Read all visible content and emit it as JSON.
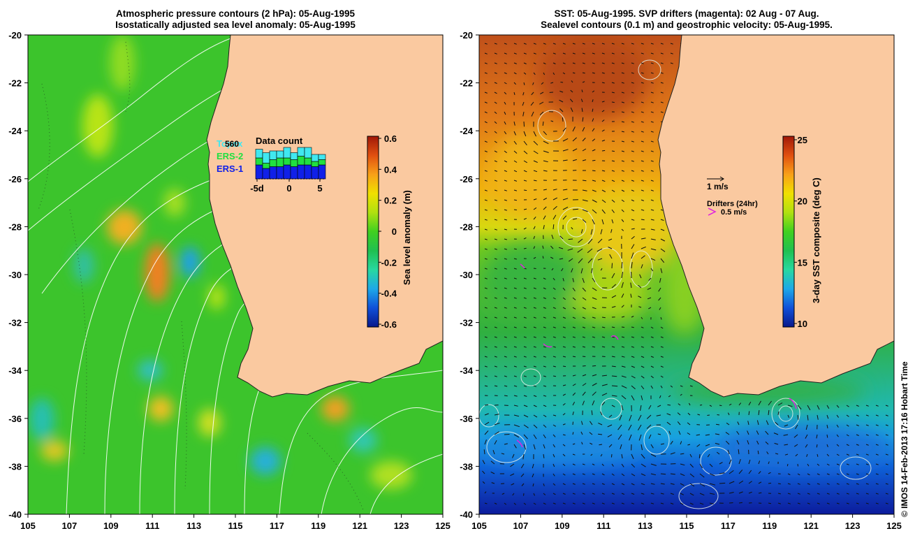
{
  "left_panel": {
    "title_line1": "Atmospheric pressure contours (2 hPa): 05-Aug-1995",
    "title_line2": "Isostatically adjusted sea level anomaly: 05-Aug-1995",
    "colorbar": {
      "label": "Sea level anomaly (m)",
      "ticks": [
        "0.6",
        "0.4",
        "0.2",
        "0",
        "-0.2",
        "-0.4",
        "-0.6"
      ],
      "colors": [
        "#08188c",
        "#1050d8",
        "#1ea8e8",
        "#28d8a0",
        "#20c050",
        "#40d020",
        "#b0e010",
        "#f0e000",
        "#f8a018",
        "#e05010",
        "#a01808"
      ]
    },
    "inset": {
      "title": "Data count",
      "max_label": "560",
      "legend": [
        {
          "name": "Topex",
          "color": "#40e8f0"
        },
        {
          "name": "ERS-2",
          "color": "#20e040"
        },
        {
          "name": "ERS-1",
          "color": "#1020e8"
        }
      ],
      "x_ticks": [
        "-5d",
        "0",
        "5"
      ],
      "bars": [
        {
          "topex": 0.25,
          "ers2": 0.2,
          "ers1": 0.4
        },
        {
          "topex": 0.3,
          "ers2": 0.15,
          "ers1": 0.3
        },
        {
          "topex": 0.25,
          "ers2": 0.2,
          "ers1": 0.35
        },
        {
          "topex": 0.2,
          "ers2": 0.25,
          "ers1": 0.35
        },
        {
          "topex": 0.3,
          "ers2": 0.2,
          "ers1": 0.4
        },
        {
          "topex": 0.2,
          "ers2": 0.2,
          "ers1": 0.35
        },
        {
          "topex": 0.25,
          "ers2": 0.25,
          "ers1": 0.4
        },
        {
          "topex": 0.3,
          "ers2": 0.2,
          "ers1": 0.4
        },
        {
          "topex": 0.2,
          "ers2": 0.15,
          "ers1": 0.35
        },
        {
          "topex": 0.15,
          "ers2": 0.15,
          "ers1": 0.4
        }
      ]
    }
  },
  "right_panel": {
    "title_line1": "SST: 05-Aug-1995. SVP drifters (magenta): 02 Aug - 07 Aug.",
    "title_line2": "Sealevel contours (0.1 m) and geostrophic velocity: 05-Aug-1995.",
    "colorbar": {
      "label": "3-day SST composite (deg C)",
      "ticks": [
        "25",
        "20",
        "15",
        "10"
      ],
      "colors": [
        "#08188c",
        "#1050d8",
        "#1ea8e8",
        "#28d8a0",
        "#20c050",
        "#40d020",
        "#b0e010",
        "#f0e000",
        "#f8a018",
        "#e05010",
        "#a01808"
      ]
    },
    "velocity_key": "1 m/s",
    "drifters_title": "Drifters (24hr)",
    "drifters_speed": "0.5 m/s",
    "drifter_color": "#e020e0"
  },
  "axes": {
    "lon_ticks": [
      "105",
      "107",
      "109",
      "111",
      "113",
      "115",
      "117",
      "119",
      "121",
      "123",
      "125"
    ],
    "lat_ticks": [
      "-20",
      "-22",
      "-24",
      "-26",
      "-28",
      "-30",
      "-32",
      "-34",
      "-36",
      "-38",
      "-40"
    ]
  },
  "land_color": "#fac9a0",
  "credit": "© IMOS 14-Feb-2013 17:16 Hobart Time"
}
